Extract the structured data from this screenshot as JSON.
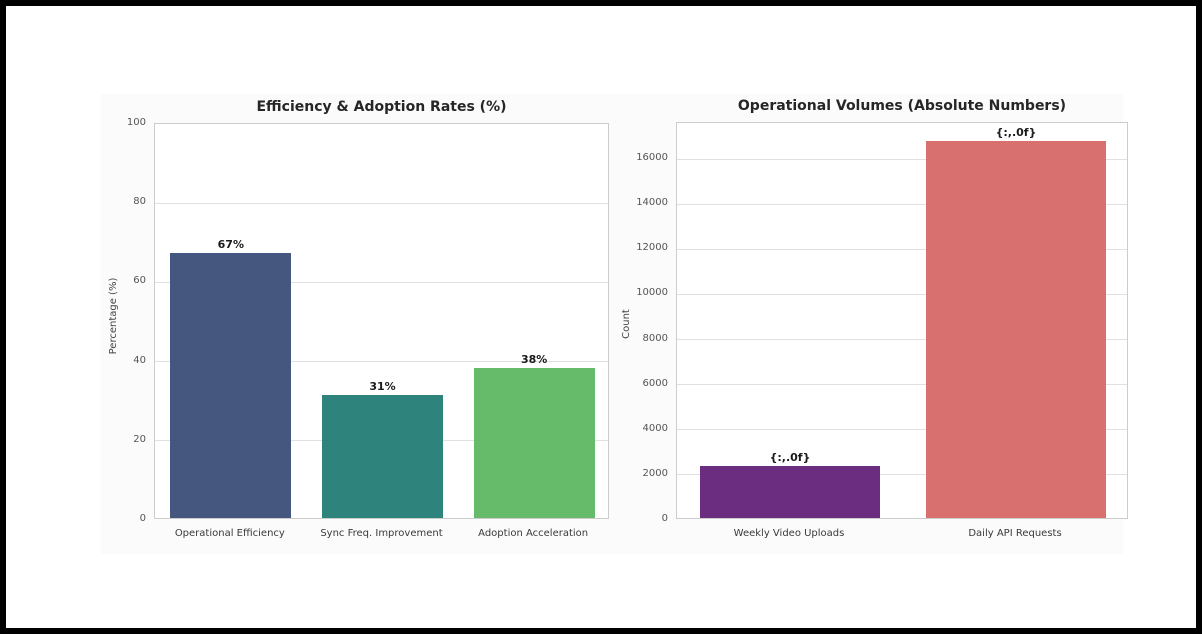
{
  "figure": {
    "frame_color": "#000000",
    "background": "#ffffff",
    "panel_background": "#fbfbfb",
    "grid_color": "#e0e0e0",
    "spine_color": "#cccccc",
    "title_color": "#262626",
    "tick_label_color": "#555555",
    "axis_label_color": "#444444",
    "bar_label_color": "#1a1a1a"
  },
  "chart_data": [
    {
      "type": "bar",
      "title": "Efficiency & Adoption Rates (%)",
      "xlabel": "",
      "ylabel": "Percentage (%)",
      "categories": [
        "Operational Efficiency",
        "Sync Freq. Improvement",
        "Adoption Acceleration"
      ],
      "values": [
        67,
        31,
        38
      ],
      "bar_labels": [
        "67%",
        "31%",
        "38%"
      ],
      "bar_colors": [
        "#46577f",
        "#2e847c",
        "#66bb6a"
      ],
      "ylim": [
        0,
        100
      ],
      "yticks": [
        0,
        20,
        40,
        60,
        80,
        100
      ],
      "grid": "horizontal",
      "legend": "none"
    },
    {
      "type": "bar",
      "title": "Operational Volumes (Absolute Numbers)",
      "xlabel": "",
      "ylabel": "Count",
      "categories": [
        "Weekly Video Uploads",
        "Daily API Requests"
      ],
      "values": [
        2300,
        16700
      ],
      "bar_labels": [
        "{:,.0f}",
        "{:,.0f}"
      ],
      "bar_colors": [
        "#6b2d80",
        "#d97070"
      ],
      "ylim": [
        0,
        17600
      ],
      "yticks": [
        0,
        2000,
        4000,
        6000,
        8000,
        10000,
        12000,
        14000,
        16000
      ],
      "grid": "horizontal",
      "legend": "none"
    }
  ]
}
